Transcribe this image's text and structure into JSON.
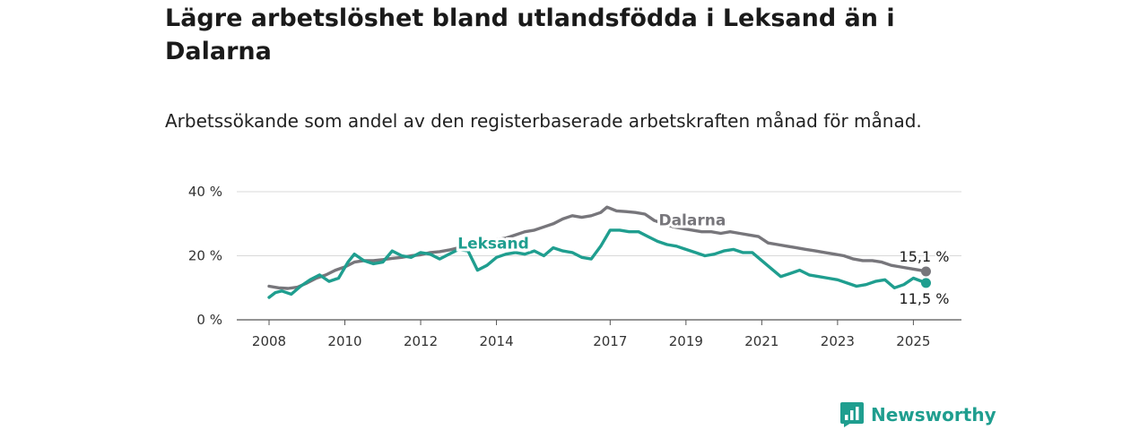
{
  "header": {
    "title": "Lägre arbetslöshet bland utlandsfödda i Leksand än i Dalarna",
    "subtitle": "Arbetssökande som andel av den registerbaserade arbetskraften månad för månad."
  },
  "brand": {
    "name": "Newsworthy",
    "icon": "bar-chart-speech-bubble-icon",
    "color": "#1f9e8f"
  },
  "chart_data": {
    "type": "line",
    "title": "Lägre arbetslöshet bland utlandsfödda i Leksand än i Dalarna",
    "subtitle": "Arbetssökande som andel av den registerbaserade arbetskraften månad för månad.",
    "xlabel": "",
    "ylabel": "",
    "x_ticks": [
      "2008",
      "2010",
      "2012",
      "2014",
      "2017",
      "2019",
      "2021",
      "2023",
      "2025"
    ],
    "y_ticks": [
      "0 %",
      "20 %",
      "40 %"
    ],
    "ylim": [
      0,
      40
    ],
    "xlim": [
      "2008-01",
      "2025-06"
    ],
    "grid": true,
    "legend": "inline labels",
    "series": [
      {
        "name": "Dalarna",
        "color": "#77767b",
        "end_label": "15,1 %",
        "points": [
          [
            "2008-01",
            10.5
          ],
          [
            "2008-04",
            10.0
          ],
          [
            "2008-07",
            9.8
          ],
          [
            "2008-10",
            10.2
          ],
          [
            "2009-01",
            11.5
          ],
          [
            "2009-04",
            13.0
          ],
          [
            "2009-07",
            14.0
          ],
          [
            "2009-10",
            15.5
          ],
          [
            "2010-01",
            16.5
          ],
          [
            "2010-04",
            18.0
          ],
          [
            "2010-07",
            18.5
          ],
          [
            "2010-10",
            18.5
          ],
          [
            "2011-01",
            18.8
          ],
          [
            "2011-04",
            19.2
          ],
          [
            "2011-07",
            19.5
          ],
          [
            "2011-10",
            20.0
          ],
          [
            "2012-01",
            20.3
          ],
          [
            "2012-04",
            21.0
          ],
          [
            "2012-07",
            21.3
          ],
          [
            "2012-10",
            21.8
          ],
          [
            "2013-01",
            22.5
          ],
          [
            "2013-04",
            23.0
          ],
          [
            "2013-07",
            24.0
          ],
          [
            "2013-10",
            24.8
          ],
          [
            "2014-01",
            25.0
          ],
          [
            "2014-04",
            25.5
          ],
          [
            "2014-07",
            26.5
          ],
          [
            "2014-10",
            27.5
          ],
          [
            "2015-01",
            28.0
          ],
          [
            "2015-04",
            29.0
          ],
          [
            "2015-07",
            30.0
          ],
          [
            "2015-10",
            31.5
          ],
          [
            "2016-01",
            32.5
          ],
          [
            "2016-04",
            32.0
          ],
          [
            "2016-07",
            32.5
          ],
          [
            "2016-10",
            33.5
          ],
          [
            "2016-12",
            35.2
          ],
          [
            "2017-03",
            34.0
          ],
          [
            "2017-06",
            33.8
          ],
          [
            "2017-09",
            33.5
          ],
          [
            "2017-12",
            33.0
          ],
          [
            "2018-03",
            31.0
          ],
          [
            "2018-06",
            30.0
          ],
          [
            "2018-09",
            29.0
          ],
          [
            "2018-12",
            28.5
          ],
          [
            "2019-03",
            28.0
          ],
          [
            "2019-06",
            27.5
          ],
          [
            "2019-09",
            27.5
          ],
          [
            "2019-12",
            27.0
          ],
          [
            "2020-03",
            27.5
          ],
          [
            "2020-06",
            27.0
          ],
          [
            "2020-09",
            26.5
          ],
          [
            "2020-12",
            26.0
          ],
          [
            "2021-03",
            24.0
          ],
          [
            "2021-06",
            23.5
          ],
          [
            "2021-09",
            23.0
          ],
          [
            "2021-12",
            22.5
          ],
          [
            "2022-03",
            22.0
          ],
          [
            "2022-06",
            21.5
          ],
          [
            "2022-09",
            21.0
          ],
          [
            "2022-12",
            20.5
          ],
          [
            "2023-03",
            20.0
          ],
          [
            "2023-06",
            19.0
          ],
          [
            "2023-09",
            18.5
          ],
          [
            "2023-12",
            18.5
          ],
          [
            "2024-03",
            18.0
          ],
          [
            "2024-06",
            17.0
          ],
          [
            "2024-09",
            16.5
          ],
          [
            "2024-12",
            16.0
          ],
          [
            "2025-03",
            15.5
          ],
          [
            "2025-05",
            15.1
          ]
        ]
      },
      {
        "name": "Leksand",
        "color": "#1f9e8f",
        "end_label": "11,5 %",
        "points": [
          [
            "2008-01",
            7.0
          ],
          [
            "2008-03",
            8.5
          ],
          [
            "2008-05",
            9.0
          ],
          [
            "2008-08",
            8.0
          ],
          [
            "2008-11",
            10.5
          ],
          [
            "2009-02",
            12.5
          ],
          [
            "2009-05",
            14.0
          ],
          [
            "2009-08",
            12.0
          ],
          [
            "2009-11",
            13.0
          ],
          [
            "2010-02",
            18.0
          ],
          [
            "2010-04",
            20.5
          ],
          [
            "2010-07",
            18.5
          ],
          [
            "2010-10",
            17.5
          ],
          [
            "2011-01",
            18.0
          ],
          [
            "2011-04",
            21.5
          ],
          [
            "2011-07",
            20.0
          ],
          [
            "2011-10",
            19.5
          ],
          [
            "2012-01",
            21.0
          ],
          [
            "2012-04",
            20.5
          ],
          [
            "2012-07",
            19.0
          ],
          [
            "2012-10",
            20.5
          ],
          [
            "2013-01",
            22.0
          ],
          [
            "2013-04",
            21.5
          ],
          [
            "2013-07",
            15.5
          ],
          [
            "2013-10",
            17.0
          ],
          [
            "2014-01",
            19.5
          ],
          [
            "2014-04",
            20.5
          ],
          [
            "2014-07",
            21.0
          ],
          [
            "2014-10",
            20.5
          ],
          [
            "2015-01",
            21.5
          ],
          [
            "2015-04",
            20.0
          ],
          [
            "2015-07",
            22.5
          ],
          [
            "2015-10",
            21.5
          ],
          [
            "2016-01",
            21.0
          ],
          [
            "2016-04",
            19.5
          ],
          [
            "2016-07",
            19.0
          ],
          [
            "2016-10",
            23.0
          ],
          [
            "2017-01",
            28.0
          ],
          [
            "2017-04",
            28.0
          ],
          [
            "2017-07",
            27.5
          ],
          [
            "2017-10",
            27.5
          ],
          [
            "2018-01",
            26.0
          ],
          [
            "2018-04",
            24.5
          ],
          [
            "2018-07",
            23.5
          ],
          [
            "2018-10",
            23.0
          ],
          [
            "2019-01",
            22.0
          ],
          [
            "2019-04",
            21.0
          ],
          [
            "2019-07",
            20.0
          ],
          [
            "2019-10",
            20.5
          ],
          [
            "2020-01",
            21.5
          ],
          [
            "2020-04",
            22.0
          ],
          [
            "2020-07",
            21.0
          ],
          [
            "2020-10",
            21.0
          ],
          [
            "2021-01",
            18.5
          ],
          [
            "2021-04",
            16.0
          ],
          [
            "2021-07",
            13.5
          ],
          [
            "2021-10",
            14.5
          ],
          [
            "2022-01",
            15.5
          ],
          [
            "2022-04",
            14.0
          ],
          [
            "2022-07",
            13.5
          ],
          [
            "2022-10",
            13.0
          ],
          [
            "2023-01",
            12.5
          ],
          [
            "2023-04",
            11.5
          ],
          [
            "2023-07",
            10.5
          ],
          [
            "2023-10",
            11.0
          ],
          [
            "2024-01",
            12.0
          ],
          [
            "2024-04",
            12.5
          ],
          [
            "2024-07",
            10.0
          ],
          [
            "2024-10",
            11.0
          ],
          [
            "2025-01",
            13.0
          ],
          [
            "2025-05",
            11.5
          ]
        ]
      }
    ]
  }
}
